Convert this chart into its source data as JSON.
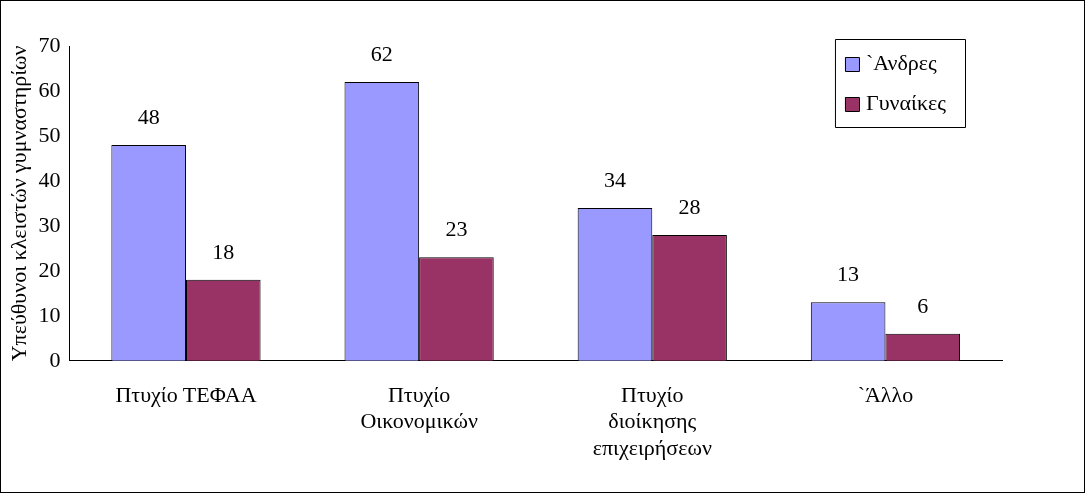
{
  "chart_data": {
    "type": "bar",
    "ylabel": "Υπεύθυνοι κλειστών γυμναστηρίων",
    "categories": [
      "Πτυχίο ΤΕΦΑΑ",
      "Πτυχίο Οικονομικών",
      "Πτυχίο διοίκησης επιχειρήσεων",
      "`Άλλο"
    ],
    "series": [
      {
        "name": "`Ανδρες",
        "color": "#9999ff",
        "values": [
          48,
          62,
          34,
          13
        ]
      },
      {
        "name": "Γυναίκες",
        "color": "#993366",
        "values": [
          18,
          23,
          28,
          6
        ]
      }
    ],
    "ylim": [
      0,
      70
    ],
    "yticks": [
      0,
      10,
      20,
      30,
      40,
      50,
      60,
      70
    ],
    "grid": false,
    "legend": "top right",
    "data_labels": true
  }
}
